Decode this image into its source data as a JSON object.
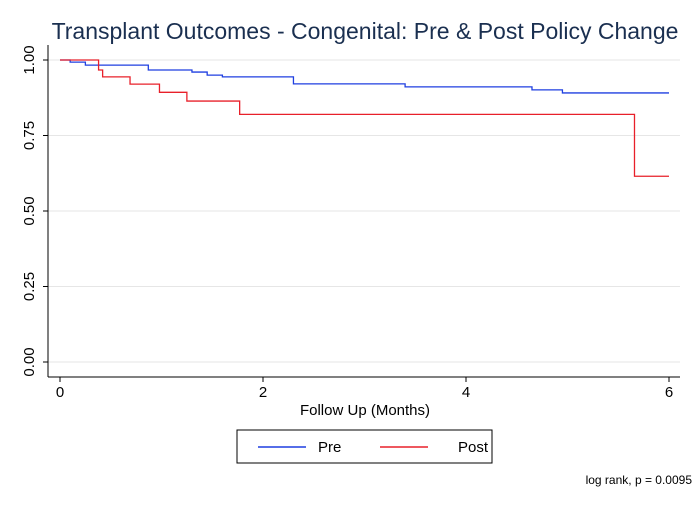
{
  "chart_data": {
    "type": "step",
    "title": "Transplant Outcomes - Congenital: Pre & Post Policy Change",
    "x_label": "Follow Up (Months)",
    "annotation": "log rank, p = 0.0095",
    "xlim": [
      0,
      6
    ],
    "xticks": [
      0,
      2,
      4,
      6
    ],
    "ylim": [
      0,
      1
    ],
    "yticks": [
      {
        "value": 0,
        "label": "0.00"
      },
      {
        "value": 0.25,
        "label": "0.25"
      },
      {
        "value": 0.5,
        "label": "0.50"
      },
      {
        "value": 0.75,
        "label": "0.75"
      },
      {
        "value": 1,
        "label": "1.00"
      }
    ],
    "grid": true,
    "series": [
      {
        "name": "Pre",
        "color": "#1f3fe0",
        "x": [
          0,
          0.1,
          0.25,
          0.87,
          1.3,
          1.45,
          1.6,
          2.3,
          3.4,
          4.65,
          4.95,
          6
        ],
        "values": [
          1,
          0.993,
          0.983,
          0.967,
          0.96,
          0.95,
          0.944,
          0.921,
          0.911,
          0.901,
          0.891,
          0.891
        ]
      },
      {
        "name": "Post",
        "color": "#e8202a",
        "x": [
          0,
          0.38,
          0.42,
          0.69,
          0.98,
          1.25,
          1.77,
          5.66,
          6
        ],
        "values": [
          1,
          0.967,
          0.944,
          0.92,
          0.893,
          0.864,
          0.82,
          0.615,
          0.615
        ]
      }
    ]
  }
}
